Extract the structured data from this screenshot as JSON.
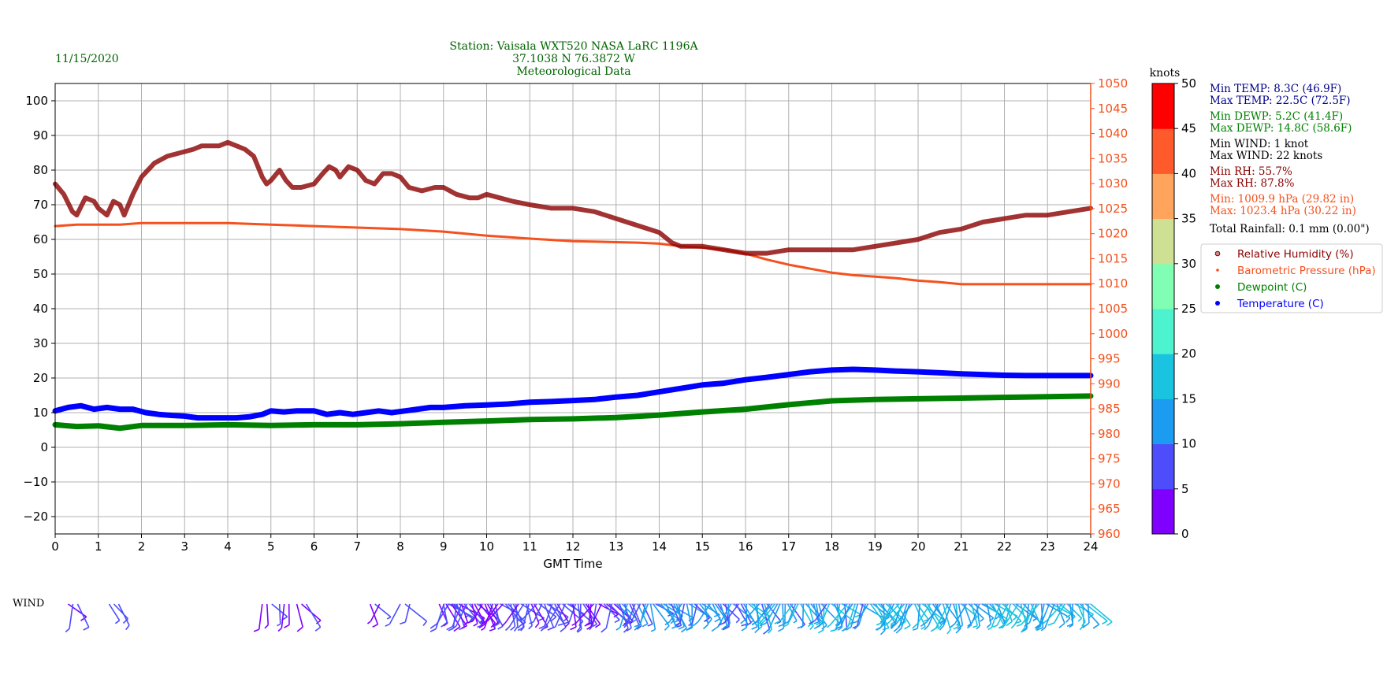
{
  "header": {
    "date": "11/15/2020",
    "title_lines": [
      "Station:  Vaisala WXT520  NASA LaRC 1196A",
      "37.1038 N 76.3872 W",
      "Meteorological Data"
    ]
  },
  "colors": {
    "title": "#006400",
    "rh": "#8b0000",
    "pressure": "#f4511e",
    "dewpoint": "#008000",
    "temperature": "#0000ff",
    "min_max_temp": "#00008b",
    "min_max_dewp": "#008000",
    "min_max_wind": "#000000",
    "min_max_rh": "#8b0000",
    "min_max_press": "#f4511e",
    "grid": "#b0b0b0"
  },
  "summary": {
    "min_temp": "Min TEMP: 8.3C (46.9F)",
    "max_temp": "Max TEMP: 22.5C (72.5F)",
    "min_dewp": "Min DEWP: 5.2C (41.4F)",
    "max_dewp": "Max DEWP: 14.8C (58.6F)",
    "min_wind": "Min WIND: 1 knot",
    "max_wind": "Max WIND: 22 knots",
    "min_rh": "Min RH: 55.7%",
    "max_rh": "Max RH: 87.8%",
    "min_press": "Min: 1009.9 hPa (29.82 in)",
    "max_press": "Max: 1023.4 hPa (30.22 in)",
    "rainfall": "Total Rainfall: 0.1 mm (0.00\")"
  },
  "legend": [
    {
      "label": "Relative Humidity (%)",
      "color": "#8b0000",
      "marker": "circle-open"
    },
    {
      "label": "Barometric Pressure (hPa)",
      "color": "#f4511e",
      "marker": "dot-small"
    },
    {
      "label": "Dewpoint (C)",
      "color": "#008000",
      "marker": "dot"
    },
    {
      "label": "Temperature (C)",
      "color": "#0000ff",
      "marker": "dot"
    }
  ],
  "colorbar": {
    "title": "knots",
    "ticks": [
      "0",
      "5",
      "10",
      "15",
      "20",
      "25",
      "30",
      "35",
      "40",
      "45",
      "50"
    ],
    "colors": [
      "#7f00ff",
      "#4d4dfc",
      "#1b9cf0",
      "#1ac4e0",
      "#4df3ce",
      "#80ffb4",
      "#cde093",
      "#ffa45c",
      "#ff5a2b",
      "#ff0000"
    ]
  },
  "wind": {
    "label": "WIND",
    "present_start_hours": [
      0.3,
      1.25,
      4.8,
      5.2,
      5.6,
      7.3,
      8.0,
      8.9,
      9.2
    ]
  },
  "chart_data": {
    "type": "line",
    "xlabel": "GMT Time",
    "xlim": [
      0,
      24
    ],
    "x_ticks": [
      "0",
      "1",
      "2",
      "3",
      "4",
      "5",
      "6",
      "7",
      "8",
      "9",
      "10",
      "11",
      "12",
      "13",
      "14",
      "15",
      "16",
      "17",
      "18",
      "19",
      "20",
      "21",
      "22",
      "23",
      "24"
    ],
    "ylim_left": [
      -25,
      105
    ],
    "y_left_ticks": [
      "−20",
      "−10",
      "0",
      "10",
      "20",
      "30",
      "40",
      "50",
      "60",
      "70",
      "80",
      "90",
      "100"
    ],
    "ylim_right": [
      960,
      1050
    ],
    "y_right_ticks": [
      "960",
      "965",
      "970",
      "975",
      "980",
      "985",
      "990",
      "995",
      "1000",
      "1005",
      "1010",
      "1015",
      "1020",
      "1025",
      "1030",
      "1035",
      "1040",
      "1045",
      "1050"
    ],
    "grid": true,
    "legend_position": "right",
    "series": [
      {
        "name": "Relative Humidity (%)",
        "axis": "left",
        "x": [
          0,
          0.2,
          0.4,
          0.5,
          0.7,
          0.9,
          1.0,
          1.2,
          1.35,
          1.5,
          1.6,
          1.8,
          2.0,
          2.3,
          2.6,
          2.9,
          3.2,
          3.4,
          3.6,
          3.8,
          4.0,
          4.2,
          4.4,
          4.6,
          4.8,
          4.9,
          5.0,
          5.2,
          5.35,
          5.5,
          5.7,
          6.0,
          6.2,
          6.35,
          6.5,
          6.6,
          6.8,
          7.0,
          7.2,
          7.4,
          7.6,
          7.8,
          8.0,
          8.2,
          8.5,
          8.8,
          9.0,
          9.3,
          9.6,
          9.8,
          10.0,
          10.3,
          10.6,
          11,
          11.5,
          12,
          12.5,
          13,
          13.5,
          14,
          14.3,
          14.5,
          15,
          15.5,
          16,
          16.3,
          16.5,
          17,
          17.5,
          18,
          18.5,
          19,
          19.5,
          20,
          20.5,
          21,
          21.5,
          22,
          22.5,
          23,
          23.5,
          24
        ],
        "y": [
          76,
          73,
          68,
          67,
          72,
          71,
          69,
          67,
          71,
          70,
          67,
          73,
          78,
          82,
          84,
          85,
          86,
          87,
          87,
          87,
          88,
          87,
          86,
          84,
          78,
          76,
          77,
          80,
          77,
          75,
          75,
          76,
          79,
          81,
          80,
          78,
          81,
          80,
          77,
          76,
          79,
          79,
          78,
          75,
          74,
          75,
          75,
          73,
          72,
          72,
          73,
          72,
          71,
          70,
          69,
          69,
          68,
          66,
          64,
          62,
          59,
          58,
          58,
          57,
          56,
          56,
          56,
          57,
          57,
          57,
          57,
          58,
          59,
          60,
          62,
          63,
          65,
          66,
          67,
          67,
          68,
          69
        ]
      },
      {
        "name": "Barometric Pressure (hPa)",
        "axis": "right",
        "x": [
          0,
          0.5,
          1,
          1.5,
          2,
          3,
          4,
          5,
          6,
          7,
          8,
          9,
          10,
          11,
          12,
          13,
          13.5,
          14,
          14.5,
          15,
          15.5,
          16,
          16.5,
          17,
          17.5,
          18,
          18.5,
          19,
          19.5,
          20,
          20.5,
          21,
          21.5,
          22,
          22.5,
          23,
          23.5,
          24
        ],
        "y": [
          1021.5,
          1021.8,
          1021.8,
          1021.8,
          1022.1,
          1022.1,
          1022.1,
          1021.8,
          1021.5,
          1021.2,
          1020.9,
          1020.4,
          1019.6,
          1019.0,
          1018.5,
          1018.3,
          1018.2,
          1018.0,
          1017.5,
          1017.2,
          1016.8,
          1016.0,
          1014.8,
          1013.8,
          1013.0,
          1012.2,
          1011.7,
          1011.4,
          1011.1,
          1010.6,
          1010.3,
          1009.9,
          1009.9,
          1009.9,
          1009.9,
          1009.9,
          1009.9,
          1009.9
        ]
      },
      {
        "name": "Dewpoint (C)",
        "axis": "left",
        "x": [
          0,
          0.5,
          1,
          1.5,
          2,
          3,
          4,
          5,
          6,
          7,
          8,
          9,
          10,
          11,
          12,
          13,
          14,
          15,
          16,
          17,
          18,
          19,
          20,
          21,
          22,
          23,
          24
        ],
        "y": [
          6.5,
          6,
          6.2,
          5.5,
          6.3,
          6.3,
          6.5,
          6.3,
          6.5,
          6.5,
          6.8,
          7.2,
          7.6,
          8,
          8.2,
          8.6,
          9.3,
          10.2,
          11,
          12.3,
          13.4,
          13.8,
          14,
          14.2,
          14.4,
          14.6,
          14.8
        ]
      },
      {
        "name": "Temperature (C)",
        "axis": "left",
        "x": [
          0,
          0.3,
          0.6,
          0.9,
          1.2,
          1.5,
          1.8,
          2.1,
          2.4,
          2.7,
          3,
          3.3,
          3.6,
          3.9,
          4.2,
          4.5,
          4.8,
          5,
          5.3,
          5.6,
          6,
          6.3,
          6.6,
          6.9,
          7.2,
          7.5,
          7.8,
          8.1,
          8.4,
          8.7,
          9,
          9.5,
          10,
          10.5,
          11,
          11.5,
          12,
          12.5,
          13,
          13.5,
          14,
          14.5,
          15,
          15.5,
          16,
          16.5,
          17,
          17.5,
          18,
          18.5,
          19,
          19.5,
          20,
          20.5,
          21,
          21.5,
          22,
          22.5,
          23,
          23.5,
          24
        ],
        "y": [
          10.5,
          11.5,
          12,
          11,
          11.5,
          11,
          11,
          10,
          9.5,
          9.2,
          9,
          8.5,
          8.5,
          8.5,
          8.5,
          8.8,
          9.5,
          10.5,
          10.2,
          10.5,
          10.5,
          9.5,
          10,
          9.5,
          10,
          10.5,
          10,
          10.5,
          11,
          11.5,
          11.5,
          12,
          12.2,
          12.5,
          13,
          13.2,
          13.5,
          13.8,
          14.5,
          15,
          16,
          17,
          18,
          18.5,
          19.5,
          20.2,
          21,
          21.8,
          22.3,
          22.5,
          22.3,
          22,
          21.8,
          21.5,
          21.2,
          21,
          20.8,
          20.7,
          20.7,
          20.7,
          20.7
        ]
      }
    ]
  }
}
